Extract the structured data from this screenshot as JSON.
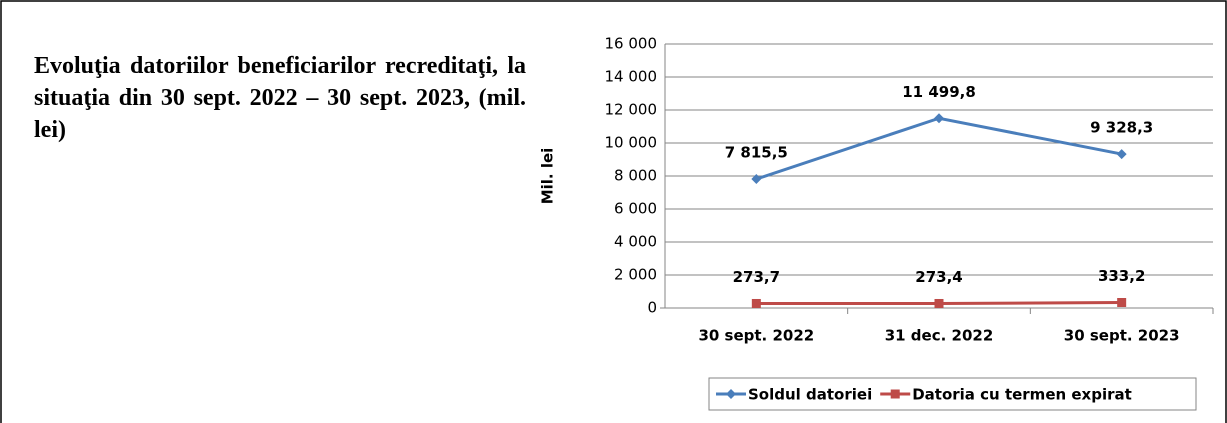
{
  "chart_data": {
    "type": "line",
    "title": "Evoluţia datoriilor beneficiarilor recreditaţi, la situaţia din  30 sept. 2022 – 30 sept. 2023, (mil. lei)",
    "ylabel": "Mil. lei",
    "categories": [
      "30 sept. 2022",
      "31 dec. 2022",
      "30 sept. 2023"
    ],
    "series": [
      {
        "name": "Soldul datoriei",
        "color": "#4a7ebb",
        "marker": "diamond",
        "values": [
          7815.5,
          11499.8,
          9328.3
        ],
        "value_labels": [
          "7 815,5",
          "11 499,8",
          "9 328,3"
        ]
      },
      {
        "name": "Datoria cu termen expirat",
        "color": "#be4b48",
        "marker": "square",
        "values": [
          273.7,
          273.4,
          333.2
        ],
        "value_labels": [
          "273,7",
          "273,4",
          "333,2"
        ]
      }
    ],
    "ylim": [
      0,
      16000
    ],
    "yticks": [
      0,
      {
        "value": 2000,
        "label": "2 000"
      },
      {
        "value": 4000,
        "label": "4 000"
      },
      {
        "value": 6000,
        "label": "6 000"
      },
      {
        "value": 8000,
        "label": "8 000"
      },
      {
        "value": 10000,
        "label": "10 000"
      },
      {
        "value": 12000,
        "label": "12 000"
      },
      {
        "value": 14000,
        "label": "14 000"
      },
      {
        "value": 16000,
        "label": "16 000"
      }
    ],
    "grid": true,
    "legend": "bottom"
  }
}
